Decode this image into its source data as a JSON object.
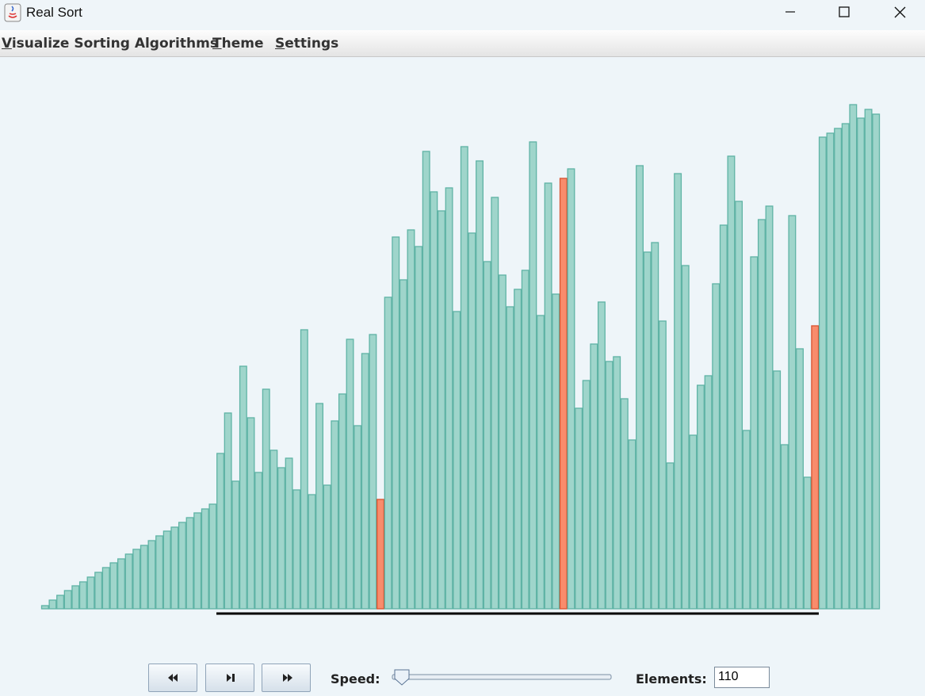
{
  "window": {
    "title": "Real Sort"
  },
  "menu": [
    "Visualize Sorting Algorithms",
    "Theme",
    "Settings"
  ],
  "chart_data": {
    "type": "bar",
    "values": [
      4,
      11,
      17,
      23,
      29,
      34,
      40,
      46,
      52,
      58,
      63,
      69,
      75,
      80,
      86,
      92,
      98,
      103,
      109,
      115,
      121,
      126,
      132,
      196,
      247,
      161,
      306,
      241,
      172,
      277,
      200,
      178,
      190,
      150,
      352,
      144,
      259,
      156,
      237,
      271,
      340,
      231,
      322,
      346,
      138,
      393,
      469,
      415,
      478,
      457,
      577,
      526,
      502,
      531,
      375,
      583,
      474,
      565,
      438,
      519,
      421,
      381,
      403,
      427,
      589,
      370,
      537,
      397,
      543,
      555,
      253,
      288,
      334,
      387,
      312,
      318,
      265,
      213,
      559,
      450,
      462,
      363,
      184,
      549,
      433,
      219,
      282,
      294,
      410,
      484,
      571,
      514,
      225,
      444,
      491,
      508,
      300,
      207,
      496,
      328,
      166,
      357,
      595,
      600,
      606,
      612,
      636,
      619,
      630,
      624
    ],
    "color": "#9fd5cb",
    "highlight_color": "#f98c6c",
    "highlighted": [
      44,
      68,
      101
    ]
  },
  "controls": {
    "speed_label": "Speed:",
    "elements_label": "Elements:",
    "elements_value": "110"
  }
}
